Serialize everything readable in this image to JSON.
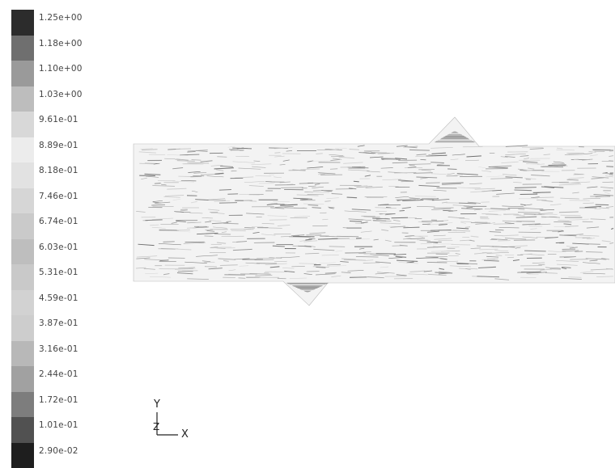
{
  "legend": {
    "levels": [
      {
        "label": "1.25e+00",
        "color": "#2c2c2c"
      },
      {
        "label": "1.18e+00",
        "color": "#6f6f6f"
      },
      {
        "label": "1.10e+00",
        "color": "#9a9a9a"
      },
      {
        "label": "1.03e+00",
        "color": "#bdbdbd"
      },
      {
        "label": "9.61e-01",
        "color": "#d8d8d8"
      },
      {
        "label": "8.89e-01",
        "color": "#ececec"
      },
      {
        "label": "8.18e-01",
        "color": "#e2e2e2"
      },
      {
        "label": "7.46e-01",
        "color": "#d6d6d6"
      },
      {
        "label": "6.74e-01",
        "color": "#cacaca"
      },
      {
        "label": "6.03e-01",
        "color": "#bebebe"
      },
      {
        "label": "5.31e-01",
        "color": "#c9c9c9"
      },
      {
        "label": "4.59e-01",
        "color": "#d2d2d2"
      },
      {
        "label": "3.87e-01",
        "color": "#cdcdcd"
      },
      {
        "label": "3.16e-01",
        "color": "#b8b8b8"
      },
      {
        "label": "2.44e-01",
        "color": "#a1a1a1"
      },
      {
        "label": "1.72e-01",
        "color": "#7d7d7d"
      },
      {
        "label": "1.01e-01",
        "color": "#515151"
      },
      {
        "label": "2.90e-02",
        "color": "#1e1e1e"
      }
    ]
  },
  "axes": {
    "y_label": "Y",
    "z_label": "Z",
    "x_label": "X"
  }
}
